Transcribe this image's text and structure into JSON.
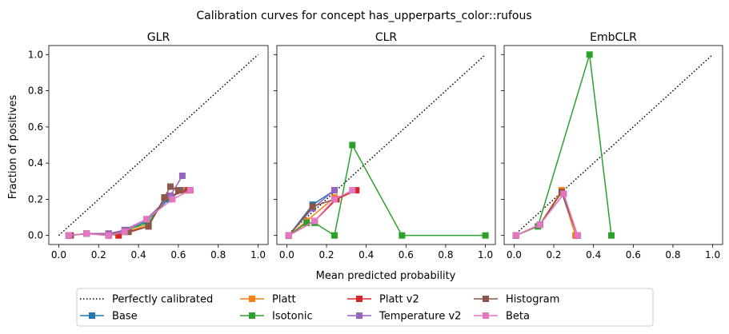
{
  "figure": {
    "suptitle": "Calibration curves for concept has_upperparts_color::rufous",
    "xlabel": "Mean predicted probability",
    "ylabel": "Fraction of positives"
  },
  "legend": {
    "placement": "bottom-center",
    "entries": [
      {
        "label": "Perfectly calibrated",
        "color": "#000000",
        "style": "dotted",
        "marker": "none"
      },
      {
        "label": "Base",
        "color": "#1f77b4",
        "style": "solid",
        "marker": "square"
      },
      {
        "label": "Platt",
        "color": "#ff7f0e",
        "style": "solid",
        "marker": "square"
      },
      {
        "label": "Isotonic",
        "color": "#2ca02c",
        "style": "solid",
        "marker": "square"
      },
      {
        "label": "Platt v2",
        "color": "#d62728",
        "style": "solid",
        "marker": "square"
      },
      {
        "label": "Temperature v2",
        "color": "#9467bd",
        "style": "solid",
        "marker": "square"
      },
      {
        "label": "Histogram",
        "color": "#8c564b",
        "style": "solid",
        "marker": "square"
      },
      {
        "label": "Beta",
        "color": "#e377c2",
        "style": "solid",
        "marker": "square"
      }
    ]
  },
  "chart_data": [
    {
      "type": "line",
      "title": "GLR",
      "xlim": [
        -0.05,
        1.05
      ],
      "ylim": [
        -0.05,
        1.05
      ],
      "xticks": [
        "0.0",
        "0.2",
        "0.4",
        "0.6",
        "0.8",
        "1.0"
      ],
      "yticks": [
        "0.0",
        "0.2",
        "0.4",
        "0.6",
        "0.8",
        "1.0"
      ],
      "series": [
        {
          "name": "Perfectly calibrated",
          "x": [
            0,
            1
          ],
          "y": [
            0,
            1
          ]
        },
        {
          "name": "Base",
          "x": [
            0.05,
            0.14,
            0.25,
            0.33,
            0.44,
            0.55,
            0.62
          ],
          "y": [
            0.0,
            0.01,
            0.01,
            0.02,
            0.08,
            0.2,
            0.25
          ]
        },
        {
          "name": "Platt",
          "x": [
            0.05,
            0.14,
            0.25,
            0.34,
            0.45,
            0.54,
            0.64
          ],
          "y": [
            0.0,
            0.01,
            0.0,
            0.02,
            0.06,
            0.21,
            0.25
          ]
        },
        {
          "name": "Isotonic",
          "x": [
            0.05,
            0.14,
            0.25,
            0.34,
            0.45,
            0.54,
            0.65
          ],
          "y": [
            0.0,
            0.01,
            0.01,
            0.03,
            0.07,
            0.21,
            0.25
          ]
        },
        {
          "name": "Platt v2",
          "x": [
            0.05,
            0.14,
            0.25,
            0.3,
            0.45,
            0.53,
            0.65
          ],
          "y": [
            0.0,
            0.01,
            0.01,
            0.0,
            0.05,
            0.21,
            0.25
          ]
        },
        {
          "name": "Temperature v2",
          "x": [
            0.05,
            0.14,
            0.25,
            0.33,
            0.44,
            0.56,
            0.62
          ],
          "y": [
            0.0,
            0.01,
            0.01,
            0.03,
            0.09,
            0.22,
            0.33
          ]
        },
        {
          "name": "Histogram",
          "x": [
            0.06,
            0.14,
            0.25,
            0.35,
            0.45,
            0.53,
            0.56,
            0.6,
            0.66
          ],
          "y": [
            0.0,
            0.01,
            0.0,
            0.02,
            0.05,
            0.21,
            0.27,
            0.25,
            0.25
          ]
        },
        {
          "name": "Beta",
          "x": [
            0.05,
            0.14,
            0.25,
            0.33,
            0.44,
            0.57,
            0.66
          ],
          "y": [
            0.0,
            0.01,
            0.0,
            0.02,
            0.09,
            0.2,
            0.25
          ]
        }
      ]
    },
    {
      "type": "line",
      "title": "CLR",
      "xlim": [
        -0.05,
        1.05
      ],
      "ylim": [
        -0.05,
        1.05
      ],
      "xticks": [
        "0.0",
        "0.2",
        "0.4",
        "0.6",
        "0.8",
        "1.0"
      ],
      "yticks": [],
      "series": [
        {
          "name": "Perfectly calibrated",
          "x": [
            0,
            1
          ],
          "y": [
            0,
            1
          ]
        },
        {
          "name": "Base",
          "x": [
            0.01,
            0.13,
            0.24
          ],
          "y": [
            0.0,
            0.17,
            0.25
          ]
        },
        {
          "name": "Platt",
          "x": [
            0.01,
            0.1,
            0.24
          ],
          "y": [
            0.0,
            0.08,
            0.21
          ]
        },
        {
          "name": "Isotonic",
          "x": [
            0.01,
            0.1,
            0.14,
            0.24,
            0.33,
            0.58,
            1.0
          ],
          "y": [
            0.0,
            0.07,
            0.07,
            0.0,
            0.5,
            0.0,
            0.0
          ]
        },
        {
          "name": "Platt v2",
          "x": [
            0.01,
            0.14,
            0.25,
            0.35
          ],
          "y": [
            0.0,
            0.08,
            0.2,
            0.25
          ]
        },
        {
          "name": "Temperature v2",
          "x": [
            0.01,
            0.13,
            0.24
          ],
          "y": [
            0.0,
            0.15,
            0.25
          ]
        },
        {
          "name": "Histogram",
          "x": [
            0.01,
            0.13,
            0.24
          ],
          "y": [
            0.0,
            0.16,
            0.2
          ]
        },
        {
          "name": "Beta",
          "x": [
            0.01,
            0.14,
            0.24,
            0.33
          ],
          "y": [
            0.0,
            0.08,
            0.2,
            0.25
          ]
        }
      ]
    },
    {
      "type": "line",
      "title": "EmbCLR",
      "xlim": [
        -0.05,
        1.05
      ],
      "ylim": [
        -0.05,
        1.05
      ],
      "xticks": [
        "0.0",
        "0.2",
        "0.4",
        "0.6",
        "0.8",
        "1.0"
      ],
      "yticks": [],
      "series": [
        {
          "name": "Perfectly calibrated",
          "x": [
            0,
            1
          ],
          "y": [
            0,
            1
          ]
        },
        {
          "name": "Base",
          "x": [
            0.01,
            0.13,
            0.24,
            0.31
          ],
          "y": [
            0.0,
            0.06,
            0.24,
            0.0
          ]
        },
        {
          "name": "Platt",
          "x": [
            0.01,
            0.13,
            0.24,
            0.31
          ],
          "y": [
            0.0,
            0.06,
            0.25,
            0.0
          ]
        },
        {
          "name": "Isotonic",
          "x": [
            0.01,
            0.12,
            0.38,
            0.49
          ],
          "y": [
            0.0,
            0.05,
            1.0,
            0.0
          ]
        },
        {
          "name": "Platt v2",
          "x": [
            0.01,
            0.13,
            0.24,
            0.32
          ],
          "y": [
            0.0,
            0.06,
            0.24,
            0.0
          ]
        },
        {
          "name": "Temperature v2",
          "x": [
            0.01,
            0.13,
            0.25,
            0.32
          ],
          "y": [
            0.0,
            0.06,
            0.23,
            0.0
          ]
        },
        {
          "name": "Histogram",
          "x": [
            0.01,
            0.13,
            0.24,
            0.32
          ],
          "y": [
            0.0,
            0.06,
            0.24,
            0.0
          ]
        },
        {
          "name": "Beta",
          "x": [
            0.01,
            0.13,
            0.25,
            0.32
          ],
          "y": [
            0.0,
            0.06,
            0.23,
            0.0
          ]
        }
      ]
    }
  ]
}
